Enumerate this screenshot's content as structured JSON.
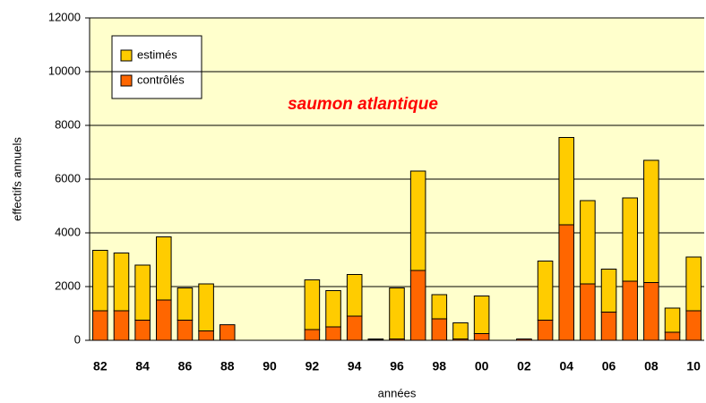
{
  "chart_data": {
    "type": "stacked_bar",
    "title": "saumon atlantique",
    "xlabel": "années",
    "ylabel": "effectifs annuels",
    "categories": [
      "82",
      null,
      "84",
      null,
      "86",
      null,
      "88",
      null,
      "90",
      null,
      "92",
      null,
      "94",
      null,
      "96",
      null,
      "98",
      null,
      "00",
      null,
      "02",
      null,
      "04",
      null,
      "06",
      null,
      "08",
      null,
      "10"
    ],
    "series": [
      {
        "name": "contrôlés",
        "color": "#ff6600",
        "values": [
          1100,
          1100,
          750,
          1500,
          750,
          350,
          580,
          0,
          0,
          0,
          400,
          500,
          900,
          40,
          50,
          2600,
          800,
          50,
          250,
          0,
          50,
          750,
          4300,
          2100,
          1050,
          2200,
          2150,
          300,
          1100
        ]
      },
      {
        "name": "estimés",
        "color": "#ffcc00",
        "values": [
          2250,
          2150,
          2050,
          2350,
          1200,
          1750,
          0,
          0,
          0,
          0,
          1850,
          1350,
          1550,
          10,
          1900,
          3700,
          900,
          600,
          1400,
          0,
          0,
          2200,
          3250,
          3100,
          1600,
          3100,
          4550,
          900,
          2000
        ]
      }
    ],
    "ylim": [
      0,
      12000
    ],
    "yticks": [
      0,
      2000,
      4000,
      6000,
      8000,
      10000,
      12000
    ],
    "grid": true
  }
}
